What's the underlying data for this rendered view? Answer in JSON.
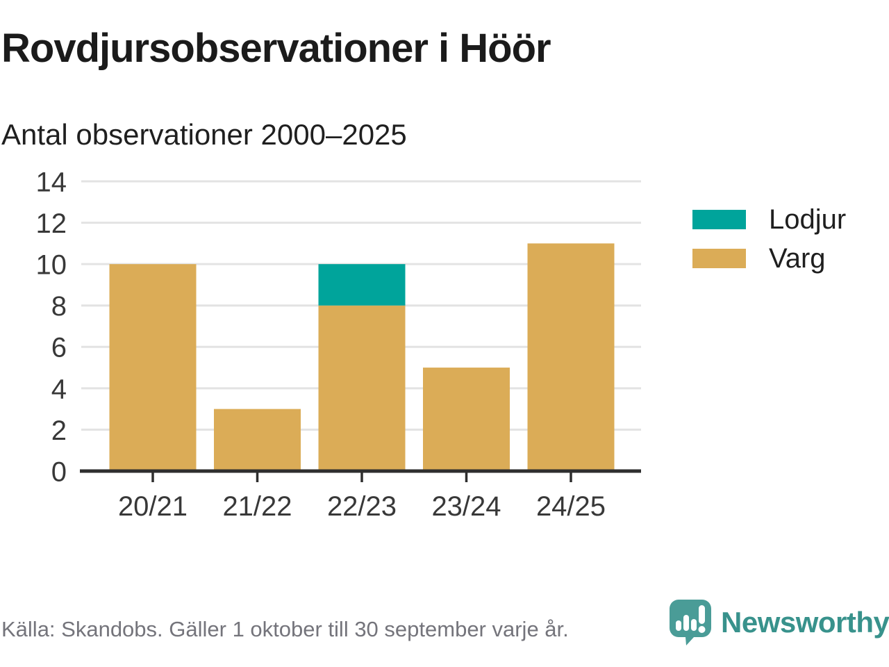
{
  "header": {
    "title": "Rovdjursobservationer i Höör",
    "subtitle": "Antal observationer 2000–2025"
  },
  "legend": {
    "position": "right",
    "items": [
      {
        "label": "Lodjur",
        "color": "#00A49B"
      },
      {
        "label": "Varg",
        "color": "#DBAC57"
      }
    ]
  },
  "footer": {
    "source_note": "Källa: Skandobs. Gäller 1 oktober till 30 september varje år.",
    "brand": {
      "name": "Newsworthy",
      "icon": "bar-chart-speech-bubble-icon",
      "icon_color": "#4A9C97",
      "text_color": "#38928C"
    }
  },
  "colors": {
    "lodjur": "#00A49B",
    "varg": "#DBAC57",
    "grid": "#E3E3E3",
    "axis": "#2E2E2E",
    "tick_text": "#383838",
    "title_text": "#1B1B1B",
    "muted_text": "#74747B",
    "background": "#FFFFFF"
  },
  "chart_data": {
    "type": "bar",
    "stacked": true,
    "title": "Rovdjursobservationer i Höör",
    "subtitle": "Antal observationer 2000–2025",
    "xlabel": "",
    "ylabel": "",
    "categories": [
      "20/21",
      "21/22",
      "22/23",
      "23/24",
      "24/25"
    ],
    "series": [
      {
        "name": "Lodjur",
        "color": "#00A49B",
        "values": [
          0,
          0,
          2,
          0,
          0
        ]
      },
      {
        "name": "Varg",
        "color": "#DBAC57",
        "values": [
          10,
          3,
          8,
          5,
          11
        ]
      }
    ],
    "stack_totals": [
      10,
      3,
      10,
      5,
      11
    ],
    "ylim": [
      0,
      14
    ],
    "yticks": [
      0,
      2,
      4,
      6,
      8,
      10,
      12,
      14
    ],
    "grid": true,
    "legend_position": "right"
  }
}
